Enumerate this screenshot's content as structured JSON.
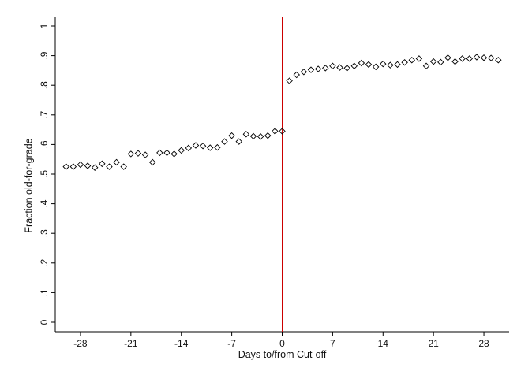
{
  "chart_data": {
    "type": "scatter",
    "xlabel": "Days to/from Cut-off",
    "ylabel": "Fraction old-for-grade",
    "xlim": [
      -31.5,
      31.5
    ],
    "ylim": [
      0,
      1
    ],
    "x_ticks": [
      -28,
      -21,
      -14,
      -7,
      0,
      7,
      14,
      21,
      28
    ],
    "x_tick_labels": [
      "-28",
      "-21",
      "-14",
      "-7",
      "0",
      "7",
      "14",
      "21",
      "28"
    ],
    "y_ticks": [
      0,
      0.1,
      0.2,
      0.3,
      0.4,
      0.5,
      0.6,
      0.7,
      0.8,
      0.9,
      1
    ],
    "y_tick_labels": [
      "0",
      ".1",
      ".2",
      ".3",
      ".4",
      ".5",
      ".6",
      ".7",
      ".8",
      ".9",
      "1"
    ],
    "cutoff_line": {
      "x": 0,
      "color": "#cc0000"
    },
    "grid": false,
    "marker": "hollow-diamond",
    "marker_color": "#000000",
    "series": [
      {
        "x": [
          -30,
          -29,
          -28,
          -27,
          -26,
          -25,
          -24,
          -23,
          -22,
          -21,
          -20,
          -19,
          -18,
          -17,
          -16,
          -15,
          -14,
          -13,
          -12,
          -11,
          -10,
          -9,
          -8,
          -7,
          -6,
          -5,
          -4,
          -3,
          -2,
          -1,
          0,
          1,
          2,
          3,
          4,
          5,
          6,
          7,
          8,
          9,
          10,
          11,
          12,
          13,
          14,
          15,
          16,
          17,
          18,
          19,
          20,
          21,
          22,
          23,
          24,
          25,
          26,
          27,
          28,
          29,
          30
        ],
        "y": [
          0.525,
          0.525,
          0.532,
          0.528,
          0.522,
          0.535,
          0.525,
          0.54,
          0.525,
          0.568,
          0.57,
          0.565,
          0.54,
          0.572,
          0.572,
          0.568,
          0.58,
          0.588,
          0.597,
          0.595,
          0.589,
          0.59,
          0.61,
          0.63,
          0.61,
          0.635,
          0.628,
          0.627,
          0.63,
          0.645,
          0.645,
          0.815,
          0.835,
          0.845,
          0.852,
          0.855,
          0.858,
          0.865,
          0.86,
          0.858,
          0.865,
          0.875,
          0.87,
          0.862,
          0.872,
          0.868,
          0.87,
          0.877,
          0.885,
          0.89,
          0.865,
          0.88,
          0.878,
          0.893,
          0.88,
          0.89,
          0.89,
          0.895,
          0.893,
          0.892,
          0.885
        ]
      }
    ]
  }
}
